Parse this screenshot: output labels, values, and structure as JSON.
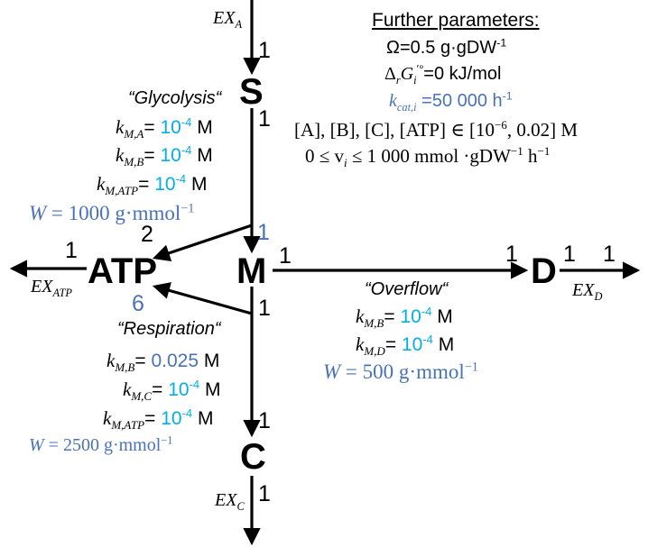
{
  "metabolites": {
    "S": "S",
    "M": "M",
    "ATP": "ATP",
    "C": "C",
    "D": "D"
  },
  "exchange": {
    "ex_a": {
      "base": "EX",
      "sub": "A"
    },
    "ex_atp": {
      "base": "EX",
      "sub": "ATP"
    },
    "ex_c": {
      "base": "EX",
      "sub": "C"
    },
    "ex_d": {
      "base": "EX",
      "sub": "D"
    }
  },
  "stoich": {
    "exa_in": "1",
    "s_out": "1",
    "m_in_glyc": "1",
    "atp_glyc": "2",
    "m_out_resp": "1",
    "atp_resp": "6",
    "c_in": "1",
    "c_out": "1",
    "atp_ex": "1",
    "m_out_over": "1",
    "d_in": "1",
    "d_out": "1",
    "d_ex": "1"
  },
  "reactions": {
    "glycolysis": {
      "name": "“Glycolysis“",
      "params": [
        {
          "k": "k",
          "sub": "M,A",
          "eq": "= ",
          "val": "10",
          "exp": "-4",
          "unit": " M"
        },
        {
          "k": "k",
          "sub": "M,B",
          "eq": "= ",
          "val": "10",
          "exp": "-4",
          "unit": " M"
        },
        {
          "k": "k",
          "sub": "M,ATP",
          "eq": "= ",
          "val": "10",
          "exp": "-4",
          "unit": " M"
        }
      ],
      "w": {
        "lhs": "W",
        "eq": " = 1000 ",
        "unit": "g·mmol",
        "exp": "−1"
      }
    },
    "respiration": {
      "name": "“Respiration“",
      "params": [
        {
          "k": "k",
          "sub": "M,B",
          "eq": "= ",
          "val": "0.025",
          "exp": "",
          "unit": " M"
        },
        {
          "k": "k",
          "sub": "M,C",
          "eq": "= ",
          "val": "10",
          "exp": "-4",
          "unit": " M"
        },
        {
          "k": "k",
          "sub": "M,ATP",
          "eq": "= ",
          "val": "10",
          "exp": "-4",
          "unit": " M"
        }
      ],
      "w": {
        "lhs": "W",
        "eq": " = 2500 ",
        "unit": "g·mmol",
        "exp": "−1"
      }
    },
    "overflow": {
      "name": "“Overflow“",
      "params": [
        {
          "k": "k",
          "sub": "M,B",
          "eq": "= ",
          "val": "10",
          "exp": "-4",
          "unit": " M"
        },
        {
          "k": "k",
          "sub": "M,D",
          "eq": "= ",
          "val": "10",
          "exp": "-4",
          "unit": " M"
        }
      ],
      "w": {
        "lhs": "W",
        "eq": " = 500 ",
        "unit": "g·mmol",
        "exp": "−1"
      }
    }
  },
  "further": {
    "title": "Further parameters:",
    "omega": {
      "text": "Ω=0.5 g·gDW",
      "exp": "-1"
    },
    "delta": {
      "d": "Δ",
      "r": "r",
      "g": "G",
      "sub": "i",
      "sup": "′°",
      "rest": "=0 kJ/mol"
    },
    "kcat": {
      "k": "k",
      "sub": "cat,i",
      "rest": " =50 000 h",
      "exp": "-1"
    },
    "conc": {
      "text": "[A], [B], [C], [ATP] ∈ [10",
      "exp": "−6",
      "rest": ", 0.02] M"
    },
    "flux": {
      "text": "0 ≤ v",
      "sub": "i",
      "rest": " ≤ 1 000 mmol ·gDW",
      "exp": "−1",
      "rest2": " h",
      "exp2": "−1"
    }
  },
  "colors": {
    "arrow": "#000000",
    "blue": "#4a72b8",
    "cyan": "#00aee8"
  }
}
